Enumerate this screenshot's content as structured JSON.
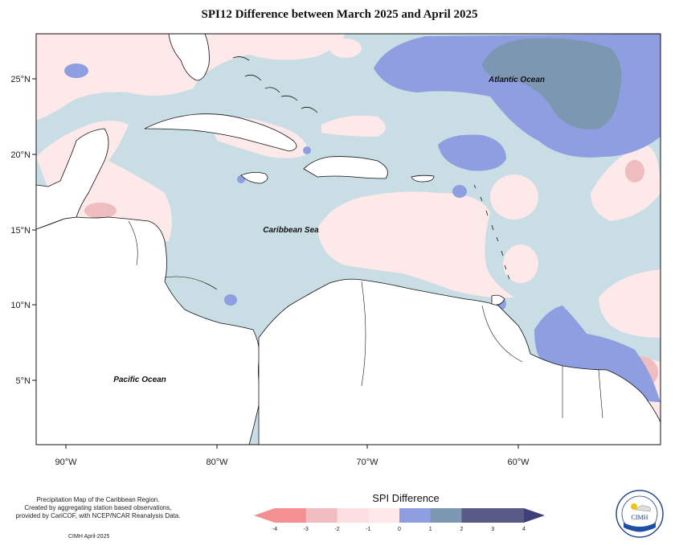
{
  "title": "SPI12 Difference between March 2025 and April 2025",
  "map": {
    "x_axis_labels": [
      "90°W",
      "80°W",
      "70°W",
      "60°W"
    ],
    "y_axis_labels": [
      "25°N",
      "20°N",
      "15°N",
      "10°N",
      "5°N"
    ],
    "annotations": [
      "Atlantic Ocean",
      "Caribbean Sea",
      "Pacific Ocean"
    ]
  },
  "legend": {
    "title": "SPI Difference",
    "ticks": [
      "-4",
      "-3",
      "-2",
      "-1",
      "0",
      "1",
      "2",
      "3",
      "4"
    ],
    "colors": [
      "#f48f92",
      "#efbcc0",
      "#fbdde2",
      "#fde8ea",
      "#c9dde4",
      "#8e9ee0",
      "#7b97b1",
      "#575b85",
      "#3f3f7a"
    ]
  },
  "credits": {
    "lines": [
      "Precipitation Map of the Caribbean Region.",
      "Created by aggregating station based observations,",
      "provided by CariCOF, with NCEP/NCAR Reanalysis Data."
    ],
    "footer": "CIMH April-2025"
  },
  "logo": {
    "text": "CIMH"
  }
}
